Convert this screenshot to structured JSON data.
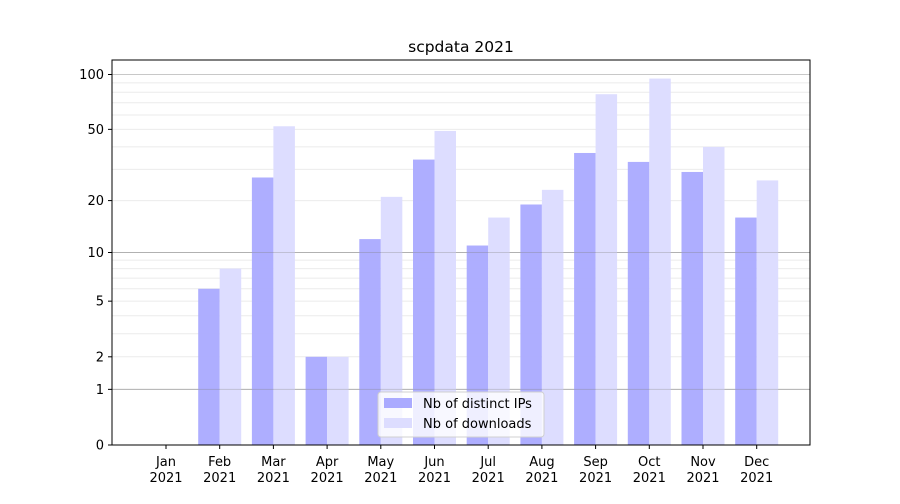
{
  "chart_data": {
    "type": "bar",
    "title": "scpdata 2021",
    "xlabel": "",
    "ylabel": "",
    "yscale": "log(1+x)",
    "ylim": [
      0,
      120
    ],
    "yticks": [
      0,
      1,
      2,
      5,
      10,
      20,
      50,
      100
    ],
    "ytick_labels": [
      "0",
      "1",
      "2",
      "5",
      "10",
      "20",
      "50",
      "100"
    ],
    "grid": true,
    "legend_position": "bottom-center",
    "categories": [
      "Jan\n2021",
      "Feb\n2021",
      "Mar\n2021",
      "Apr\n2021",
      "May\n2021",
      "Jun\n2021",
      "Jul\n2021",
      "Aug\n2021",
      "Sep\n2021",
      "Oct\n2021",
      "Nov\n2021",
      "Dec\n2021"
    ],
    "series": [
      {
        "name": "Nb of distinct IPs",
        "color": "#aaaaff",
        "values": [
          0,
          6,
          27,
          2,
          12,
          34,
          11,
          19,
          37,
          33,
          29,
          16
        ]
      },
      {
        "name": "Nb of downloads",
        "color": "#ddddff",
        "values": [
          0,
          8,
          52,
          2,
          21,
          49,
          16,
          23,
          78,
          95,
          40,
          26
        ]
      }
    ]
  }
}
